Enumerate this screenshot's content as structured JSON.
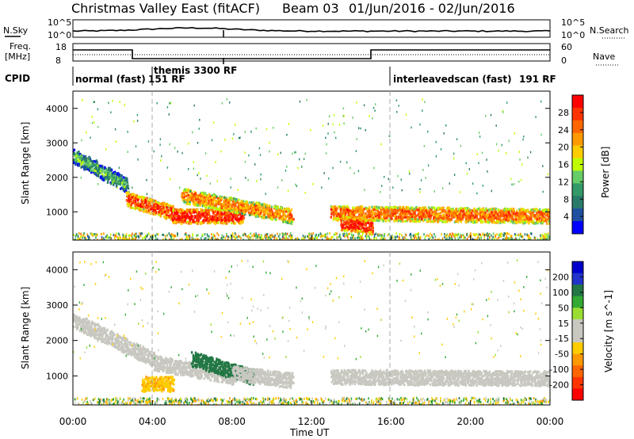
{
  "figure": {
    "title": "Christmas Valley East (fitACF)",
    "beam_label": "Beam 03",
    "date_range": "01/Jun/2016 - 02/Jun/2016"
  },
  "header_panels": {
    "nsky": {
      "left_label": "N.Sky",
      "right_label": "N.Search",
      "tick_top": "10^5",
      "tick_bottom": "10^0",
      "right_tick_top": "10^5",
      "right_tick_bottom": "10^0"
    },
    "freq": {
      "left_label_1": "Freq.",
      "left_label_2": "[MHz]",
      "tick_top": "18",
      "tick_bottom": "8",
      "right_label": "Nave",
      "right_tick_top": "60",
      "right_tick_bottom": "0"
    },
    "cpid": {
      "label": "CPID",
      "segments": [
        {
          "text": "normal (fast)",
          "start_hour": 0
        },
        {
          "text": "151 RF",
          "start_hour": 4
        },
        {
          "text": "themis 3300 RF",
          "start_hour": 4
        },
        {
          "text": "interleavedscan (fast)",
          "start_hour": 16
        },
        {
          "text": "191 RF",
          "start_hour": 16
        }
      ],
      "dividers_hours": [
        4,
        16
      ]
    }
  },
  "x_axis": {
    "label": "Time UT",
    "tick_labels": [
      "00:00",
      "04:00",
      "08:00",
      "12:00",
      "16:00",
      "20:00",
      "00:00"
    ],
    "tick_hours": [
      0,
      4,
      8,
      12,
      16,
      20,
      24
    ]
  },
  "colorbars": {
    "power": {
      "label": "Power [dB]",
      "tick_labels": [
        "28",
        "24",
        "20",
        "16",
        "12",
        "8",
        "4"
      ],
      "colors": [
        "#ff0000",
        "#ff3300",
        "#ff6600",
        "#ff9900",
        "#ffcc00",
        "#bfff00",
        "#66cc66",
        "#339966",
        "#2a7a6a",
        "#1f4fa0",
        "#0000ff"
      ]
    },
    "velocity": {
      "label": "Velocity [m s^-1]",
      "tick_labels": [
        "200",
        "100",
        "50",
        "15",
        "-15",
        "-50",
        "-100",
        "-200"
      ],
      "colors": [
        "#0000cc",
        "#2233cc",
        "#227744",
        "#33aa33",
        "#99dd33",
        "#c8c8c0",
        "#c8c8c0",
        "#ffcc00",
        "#ff9900",
        "#ff6600",
        "#ff3300",
        "#ff0000"
      ]
    }
  },
  "chart_data": [
    {
      "type": "heatmap",
      "title": "",
      "ylabel": "Slant Range [km]",
      "xlabel": "",
      "y_tick_labels": [
        "1000",
        "2000",
        "3000",
        "4000"
      ],
      "ylim": [
        180,
        4500
      ],
      "xlim_hours": [
        0,
        24
      ],
      "colorbar": "Power [dB]",
      "features": [
        {
          "name": "",
          "hours": [
            0.0,
            2.7
          ],
          "range_start_km": 2650,
          "range_end_km": 1800,
          "value_db": 10
        },
        {
          "name": "",
          "hours": [
            2.7,
            5.0
          ],
          "range_start_km": 1400,
          "range_end_km": 1000,
          "value_db": 26
        },
        {
          "name": "",
          "hours": [
            5.0,
            8.5
          ],
          "range_start_km": 900,
          "range_end_km": 900,
          "value_db": 28
        },
        {
          "name": "",
          "hours": [
            5.5,
            11.0
          ],
          "range_start_km": 1500,
          "range_end_km": 900,
          "value_db": 22
        },
        {
          "name": "",
          "hours": [
            13.0,
            24.0
          ],
          "range_start_km": 1000,
          "range_end_km": 900,
          "value_db": 24
        },
        {
          "name": "",
          "hours": [
            13.5,
            15.0
          ],
          "range_start_km": 700,
          "range_end_km": 600,
          "value_db": 28
        }
      ]
    },
    {
      "type": "heatmap",
      "title": "",
      "ylabel": "Slant Range [km]",
      "xlabel": "Time UT",
      "y_tick_labels": [
        "1000",
        "2000",
        "3000",
        "4000"
      ],
      "ylim": [
        180,
        4500
      ],
      "xlim_hours": [
        0,
        24
      ],
      "colorbar": "Velocity [m s^-1]",
      "features": [
        {
          "name": "",
          "hours": [
            0.0,
            4.0
          ],
          "range_start_km": 2600,
          "range_end_km": 1500,
          "value_ms": 0
        },
        {
          "name": "",
          "hours": [
            4.0,
            8.0
          ],
          "range_start_km": 1400,
          "range_end_km": 1000,
          "value_ms": 0
        },
        {
          "name": "",
          "hours": [
            6.0,
            9.0
          ],
          "range_start_km": 1500,
          "range_end_km": 1000,
          "value_ms": 60
        },
        {
          "name": "",
          "hours": [
            8.0,
            11.0
          ],
          "range_start_km": 1100,
          "range_end_km": 900,
          "value_ms": 0
        },
        {
          "name": "",
          "hours": [
            13.0,
            24.0
          ],
          "range_start_km": 1000,
          "range_end_km": 950,
          "value_ms": 0
        },
        {
          "name": "",
          "hours": [
            3.5,
            5.0
          ],
          "range_start_km": 800,
          "range_end_km": 800,
          "value_ms": -40
        }
      ]
    }
  ]
}
